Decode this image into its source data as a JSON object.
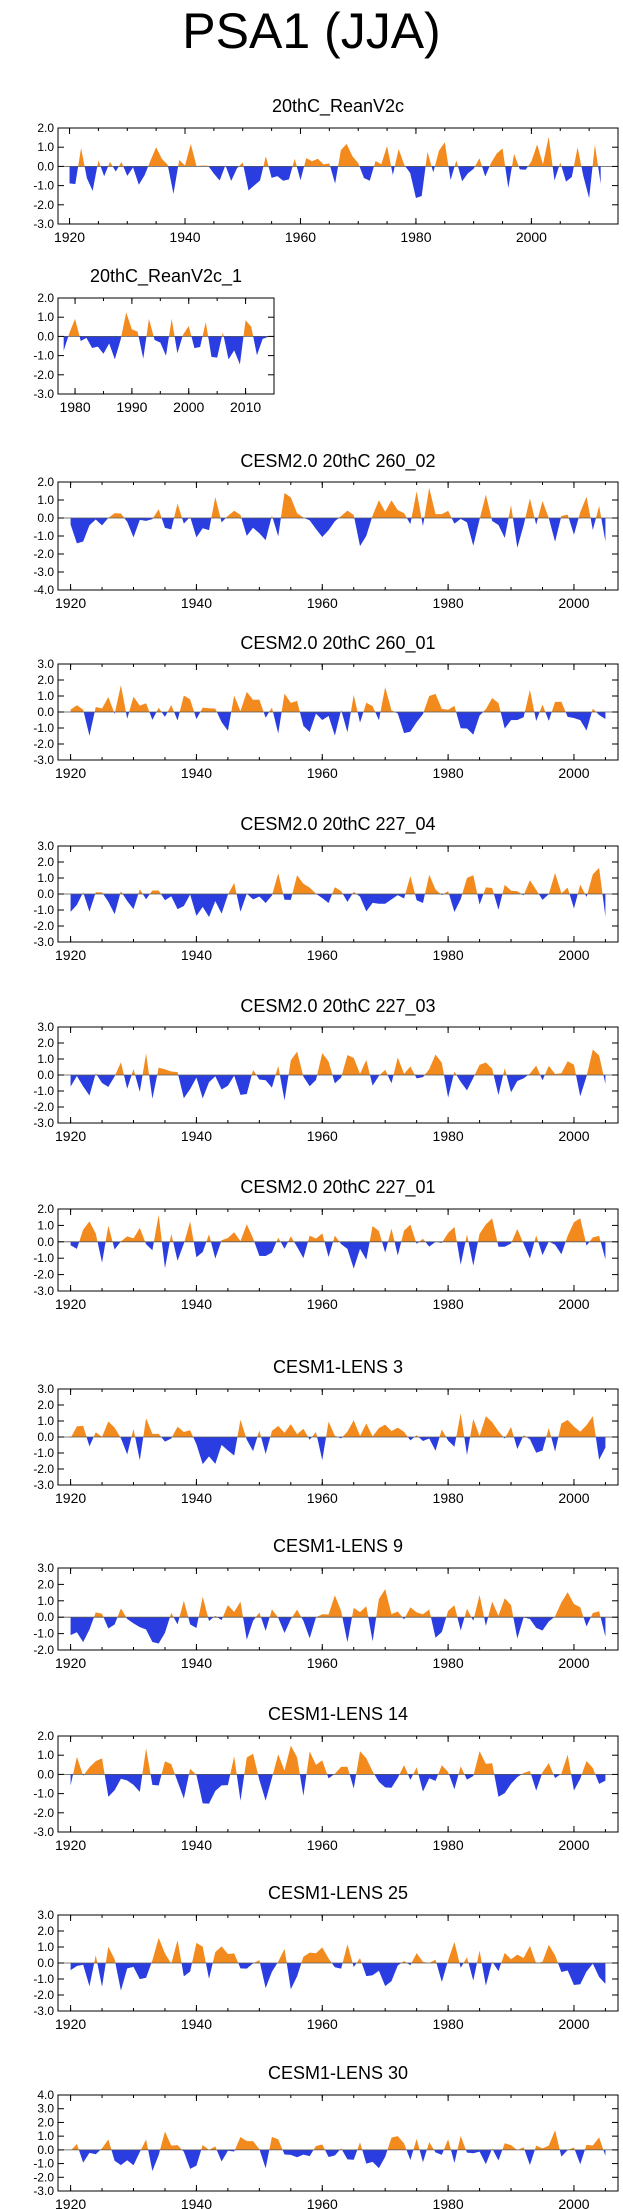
{
  "title": "PSA1 (JJA)",
  "colors": {
    "positive": "#f28a1e",
    "negative": "#2a3de0",
    "axis": "#000000"
  },
  "chart_data": [
    {
      "type": "area",
      "title": "20thC_ReanV2c",
      "xlim": [
        1918,
        2015
      ],
      "ylim": [
        -3.0,
        2.0
      ],
      "yticks": [
        2.0,
        1.0,
        0.0,
        -1.0,
        -2.0,
        -3.0
      ],
      "xticks": [
        1920,
        1940,
        1960,
        1980,
        2000
      ],
      "x_start": 1920,
      "x_end": 2012,
      "seed": 11
    },
    {
      "type": "area",
      "title": "20thC_ReanV2c_1",
      "xlim": [
        1977,
        2015
      ],
      "ylim": [
        -3.0,
        2.0
      ],
      "yticks": [
        2.0,
        1.0,
        0.0,
        -1.0,
        -2.0,
        -3.0
      ],
      "xticks": [
        1980,
        1990,
        2000,
        2010
      ],
      "x_start": 1978,
      "x_end": 2014,
      "seed": 23
    },
    {
      "type": "area",
      "title": "CESM2.0 20thC 260_02",
      "xlim": [
        1918,
        2007
      ],
      "ylim": [
        -4.0,
        2.0
      ],
      "yticks": [
        2.0,
        1.0,
        0.0,
        -1.0,
        -2.0,
        -3.0,
        -4.0
      ],
      "xticks": [
        1920,
        1940,
        1960,
        1980,
        2000
      ],
      "x_start": 1920,
      "x_end": 2005,
      "seed": 37
    },
    {
      "type": "area",
      "title": "CESM2.0 20thC 260_01",
      "xlim": [
        1918,
        2007
      ],
      "ylim": [
        -3.0,
        3.0
      ],
      "yticks": [
        3.0,
        2.0,
        1.0,
        0.0,
        -1.0,
        -2.0,
        -3.0
      ],
      "xticks": [
        1920,
        1940,
        1960,
        1980,
        2000
      ],
      "x_start": 1920,
      "x_end": 2005,
      "seed": 41
    },
    {
      "type": "area",
      "title": "CESM2.0 20thC 227_04",
      "xlim": [
        1918,
        2007
      ],
      "ylim": [
        -3.0,
        3.0
      ],
      "yticks": [
        3.0,
        2.0,
        1.0,
        0.0,
        -1.0,
        -2.0,
        -3.0
      ],
      "xticks": [
        1920,
        1940,
        1960,
        1980,
        2000
      ],
      "x_start": 1920,
      "x_end": 2005,
      "seed": 53
    },
    {
      "type": "area",
      "title": "CESM2.0 20thC 227_03",
      "xlim": [
        1918,
        2007
      ],
      "ylim": [
        -3.0,
        3.0
      ],
      "yticks": [
        3.0,
        2.0,
        1.0,
        0.0,
        -1.0,
        -2.0,
        -3.0
      ],
      "xticks": [
        1920,
        1940,
        1960,
        1980,
        2000
      ],
      "x_start": 1920,
      "x_end": 2005,
      "seed": 67
    },
    {
      "type": "area",
      "title": "CESM2.0 20thC 227_01",
      "xlim": [
        1918,
        2007
      ],
      "ylim": [
        -3.0,
        2.0
      ],
      "yticks": [
        2.0,
        1.0,
        0.0,
        -1.0,
        -2.0,
        -3.0
      ],
      "xticks": [
        1920,
        1940,
        1960,
        1980,
        2000
      ],
      "x_start": 1920,
      "x_end": 2005,
      "seed": 71
    },
    {
      "type": "area",
      "title": "CESM1-LENS 3",
      "xlim": [
        1918,
        2007
      ],
      "ylim": [
        -3.0,
        3.0
      ],
      "yticks": [
        3.0,
        2.0,
        1.0,
        0.0,
        -1.0,
        -2.0,
        -3.0
      ],
      "xticks": [
        1920,
        1940,
        1960,
        1980,
        2000
      ],
      "x_start": 1920,
      "x_end": 2005,
      "seed": 83
    },
    {
      "type": "area",
      "title": "CESM1-LENS 9",
      "xlim": [
        1918,
        2007
      ],
      "ylim": [
        -2.0,
        3.0
      ],
      "yticks": [
        3.0,
        2.0,
        1.0,
        0.0,
        -1.0,
        -2.0
      ],
      "xticks": [
        1920,
        1940,
        1960,
        1980,
        2000
      ],
      "x_start": 1920,
      "x_end": 2005,
      "seed": 97
    },
    {
      "type": "area",
      "title": "CESM1-LENS 14",
      "xlim": [
        1918,
        2007
      ],
      "ylim": [
        -3.0,
        2.0
      ],
      "yticks": [
        2.0,
        1.0,
        0.0,
        -1.0,
        -2.0,
        -3.0
      ],
      "xticks": [
        1920,
        1940,
        1960,
        1980,
        2000
      ],
      "x_start": 1920,
      "x_end": 2005,
      "seed": 101
    },
    {
      "type": "area",
      "title": "CESM1-LENS 25",
      "xlim": [
        1918,
        2007
      ],
      "ylim": [
        -3.0,
        3.0
      ],
      "yticks": [
        3.0,
        2.0,
        1.0,
        0.0,
        -1.0,
        -2.0,
        -3.0
      ],
      "xticks": [
        1920,
        1940,
        1960,
        1980,
        2000
      ],
      "x_start": 1920,
      "x_end": 2005,
      "seed": 113
    },
    {
      "type": "area",
      "title": "CESM1-LENS 30",
      "xlim": [
        1918,
        2007
      ],
      "ylim": [
        -3.0,
        4.0
      ],
      "yticks": [
        4.0,
        3.0,
        2.0,
        1.0,
        0.0,
        -1.0,
        -2.0,
        -3.0
      ],
      "xticks": [
        1920,
        1940,
        1960,
        1980,
        2000
      ],
      "x_start": 1920,
      "x_end": 2005,
      "seed": 127
    }
  ]
}
